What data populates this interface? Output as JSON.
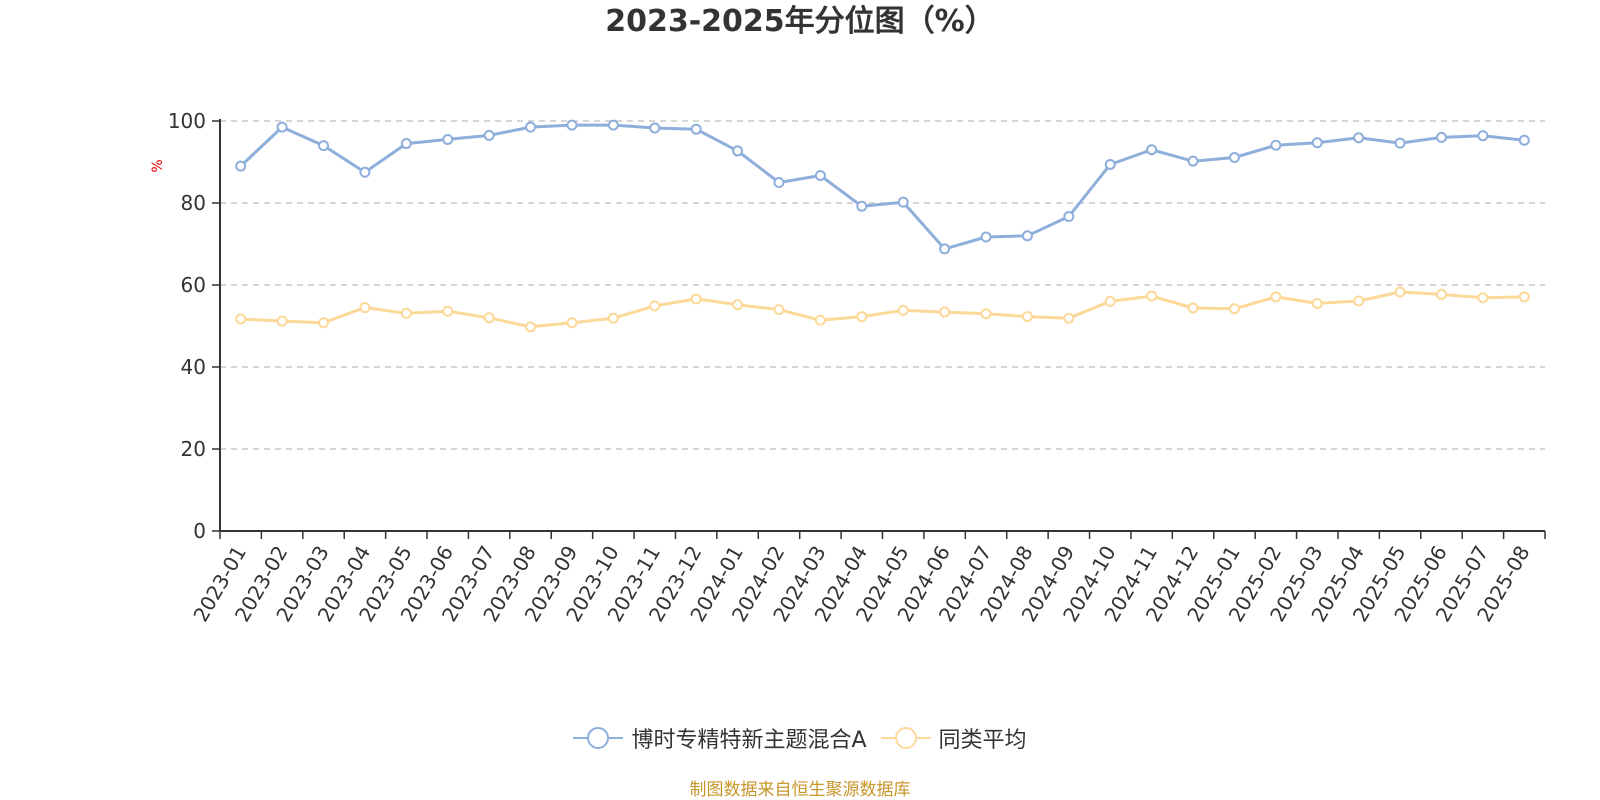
{
  "title": "2023-2025年分位图（%）",
  "source": "制图数据来自恒生聚源数据库",
  "colors": {
    "series1": "#8eaedb",
    "series2": "#fcd899",
    "ylabel": "#e00000",
    "source": "#c8962a"
  },
  "chart_data": {
    "type": "line",
    "title": "2023-2025年分位图（%）",
    "xlabel": "",
    "ylabel": "%",
    "ylim": [
      0,
      100
    ],
    "yticks": [
      0,
      20,
      40,
      60,
      80,
      100
    ],
    "grid": true,
    "legend_position": "bottom",
    "categories": [
      "2023-01",
      "2023-02",
      "2023-03",
      "2023-04",
      "2023-05",
      "2023-06",
      "2023-07",
      "2023-08",
      "2023-09",
      "2023-10",
      "2023-11",
      "2023-12",
      "2024-01",
      "2024-02",
      "2024-03",
      "2024-04",
      "2024-05",
      "2024-06",
      "2024-07",
      "2024-08",
      "2024-09",
      "2024-10",
      "2024-11",
      "2024-12",
      "2025-01",
      "2025-02",
      "2025-03",
      "2025-04",
      "2025-05",
      "2025-06",
      "2025-07",
      "2025-08"
    ],
    "series": [
      {
        "name": "博时专精特新主题混合A",
        "values": [
          89.0,
          98.5,
          94.0,
          87.5,
          94.5,
          95.5,
          96.5,
          98.5,
          99.0,
          99.0,
          98.3,
          98.0,
          92.7,
          85.0,
          86.7,
          79.2,
          80.2,
          68.8,
          71.7,
          72.0,
          76.7,
          89.4,
          93.0,
          90.2,
          91.1,
          94.1,
          94.7,
          95.9,
          94.6,
          96.0,
          96.4,
          95.3
        ]
      },
      {
        "name": "同类平均",
        "values": [
          51.7,
          51.2,
          50.8,
          54.5,
          53.1,
          53.6,
          52.0,
          49.8,
          50.8,
          51.9,
          54.9,
          56.6,
          55.2,
          54.0,
          51.4,
          52.3,
          53.8,
          53.4,
          53.0,
          52.3,
          51.9,
          56.0,
          57.3,
          54.4,
          54.2,
          57.1,
          55.5,
          56.1,
          58.3,
          57.7,
          56.9,
          57.1
        ]
      }
    ]
  }
}
